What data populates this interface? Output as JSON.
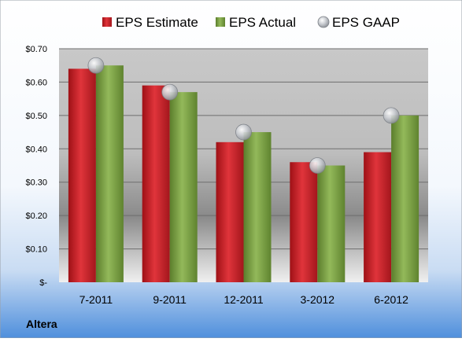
{
  "chart_data": {
    "type": "bar",
    "categories": [
      "7-2011",
      "9-2011",
      "12-2011",
      "3-2012",
      "6-2012"
    ],
    "series": [
      {
        "name": "EPS Estimate",
        "kind": "bar",
        "color": "#d0222a",
        "values": [
          0.64,
          0.59,
          0.42,
          0.36,
          0.39
        ]
      },
      {
        "name": "EPS Actual",
        "kind": "bar",
        "color": "#7fa34a",
        "values": [
          0.65,
          0.57,
          0.45,
          0.35,
          0.5
        ]
      },
      {
        "name": "EPS GAAP",
        "kind": "marker",
        "color": "#b8bcc2",
        "values": [
          0.65,
          0.57,
          0.45,
          0.35,
          0.5
        ]
      }
    ],
    "ylim": [
      0,
      0.7
    ],
    "yticks": [
      0,
      0.1,
      0.2,
      0.3,
      0.4,
      0.5,
      0.6,
      0.7
    ],
    "ytick_labels": [
      "$-",
      "$0.10",
      "$0.20",
      "$0.30",
      "$0.40",
      "$0.50",
      "$0.60",
      "$0.70"
    ],
    "grid": true,
    "legend_position": "top"
  },
  "company_label": "Altera"
}
